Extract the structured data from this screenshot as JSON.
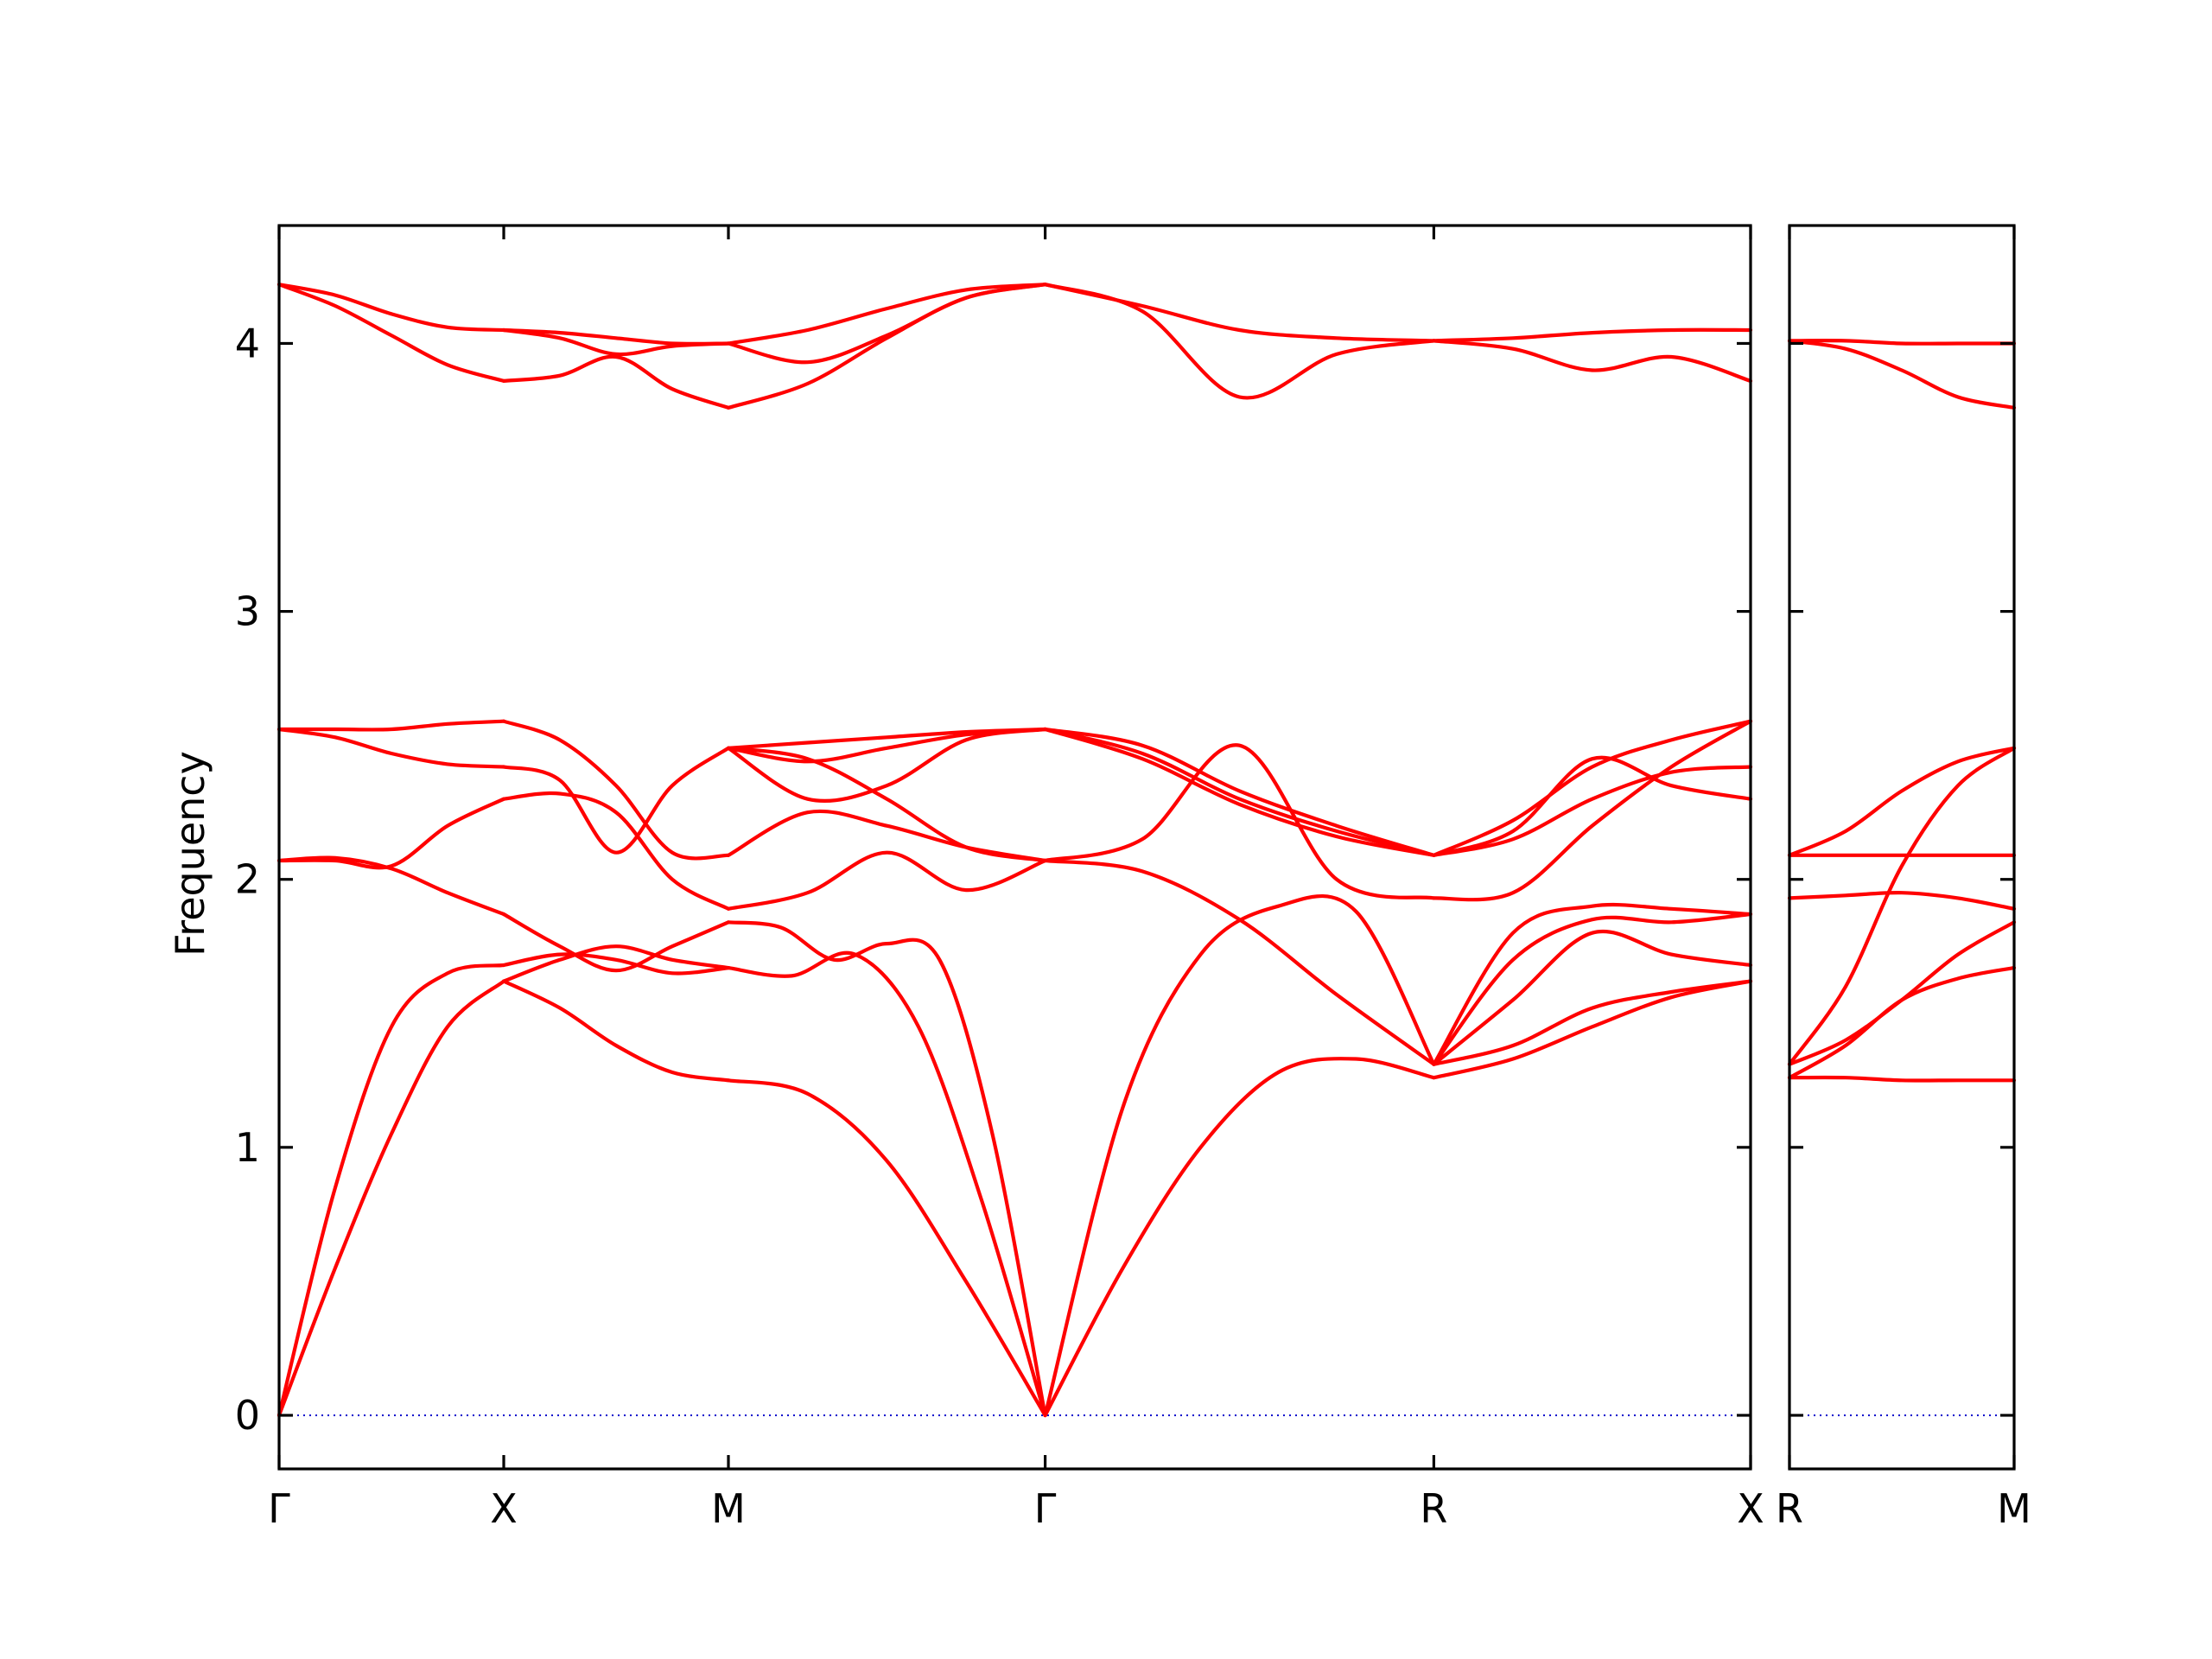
{
  "chart_data": {
    "type": "line",
    "title": "",
    "ylabel": "Frequency",
    "ylim": [
      -0.2,
      4.44
    ],
    "yticks": [
      0,
      1,
      2,
      3,
      4
    ],
    "colors": {
      "bands": "#ff0000",
      "zero_line": "#0000cc",
      "frame": "#000000"
    },
    "grid": false,
    "panels": [
      {
        "id": "main",
        "x_labels": [
          "Γ",
          "X",
          "M",
          "Γ",
          "R",
          "X"
        ],
        "segments": [
          {
            "from": "Γ",
            "to": "X",
            "length": 1.0,
            "bands": [
              [
                0.0,
                0.55,
                1.05,
                1.45,
                1.62
              ],
              [
                0.0,
                0.85,
                1.45,
                1.65,
                1.68
              ],
              [
                2.07,
                2.08,
                2.04,
                1.95,
                1.87
              ],
              [
                2.07,
                2.07,
                2.05,
                2.2,
                2.3
              ],
              [
                2.56,
                2.53,
                2.47,
                2.43,
                2.42
              ],
              [
                2.56,
                2.56,
                2.56,
                2.58,
                2.59
              ],
              [
                4.22,
                4.14,
                4.03,
                3.92,
                3.86
              ],
              [
                4.22,
                4.18,
                4.11,
                4.06,
                4.05
              ]
            ]
          },
          {
            "from": "X",
            "to": "M",
            "length": 1.0,
            "bands": [
              [
                1.62,
                1.52,
                1.38,
                1.28,
                1.25
              ],
              [
                1.62,
                1.7,
                1.75,
                1.7,
                1.67
              ],
              [
                1.68,
                1.72,
                1.7,
                1.65,
                1.67
              ],
              [
                1.87,
                1.75,
                1.66,
                1.75,
                1.84
              ],
              [
                2.3,
                2.32,
                2.25,
                2.0,
                1.89
              ],
              [
                2.42,
                2.37,
                2.1,
                2.35,
                2.49
              ],
              [
                2.59,
                2.52,
                2.35,
                2.1,
                2.09
              ],
              [
                3.86,
                3.88,
                3.95,
                3.83,
                3.76
              ],
              [
                4.05,
                4.02,
                3.96,
                3.99,
                4.0
              ],
              [
                4.05,
                4.04,
                4.02,
                4.0,
                4.0
              ]
            ]
          },
          {
            "from": "M",
            "to": "Γ",
            "length": 1.41,
            "bands": [
              [
                1.25,
                1.2,
                0.95,
                0.5,
                0.0
              ],
              [
                1.67,
                1.64,
                1.72,
                1.45,
                0.8,
                0.0
              ],
              [
                1.84,
                1.82,
                1.7,
                1.76,
                1.7,
                1.05,
                0.0
              ],
              [
                1.89,
                1.95,
                2.1,
                1.96,
                2.07
              ],
              [
                2.09,
                2.25,
                2.2,
                2.12,
                2.07
              ],
              [
                2.49,
                2.45,
                2.3,
                2.12,
                2.07
              ],
              [
                2.49,
                2.3,
                2.35,
                2.52,
                2.56
              ],
              [
                2.49,
                2.44,
                2.49,
                2.54,
                2.56
              ],
              [
                2.49,
                2.51,
                2.53,
                2.55,
                2.56
              ],
              [
                3.76,
                3.85,
                4.02,
                4.17,
                4.22
              ],
              [
                4.0,
                3.93,
                4.03,
                4.17,
                4.22
              ],
              [
                4.0,
                4.05,
                4.13,
                4.2,
                4.22
              ]
            ]
          },
          {
            "from": "Γ",
            "to": "R",
            "length": 1.73,
            "bands": [
              [
                0.0,
                0.55,
                1.0,
                1.28,
                1.33,
                1.26
              ],
              [
                0.0,
                1.15,
                1.72,
                1.9,
                1.88,
                1.31
              ],
              [
                2.07,
                2.03,
                1.85,
                1.57,
                1.31
              ],
              [
                2.07,
                2.15,
                2.5,
                2.0,
                1.93
              ],
              [
                2.56,
                2.5,
                2.33,
                2.2,
                2.09
              ],
              [
                2.56,
                2.47,
                2.3,
                2.18,
                2.09
              ],
              [
                2.56,
                2.45,
                2.28,
                2.16,
                2.09
              ],
              [
                4.22,
                4.12,
                3.8,
                3.96,
                4.01
              ],
              [
                4.22,
                4.14,
                4.05,
                4.02,
                4.01
              ]
            ]
          },
          {
            "from": "R",
            "to": "X",
            "length": 1.41,
            "bands": [
              [
                1.26,
                1.33,
                1.45,
                1.56,
                1.62
              ],
              [
                1.31,
                1.38,
                1.52,
                1.58,
                1.62
              ],
              [
                1.31,
                1.55,
                1.8,
                1.72,
                1.68
              ],
              [
                1.31,
                1.7,
                1.85,
                1.84,
                1.87
              ],
              [
                1.31,
                1.8,
                1.9,
                1.89,
                1.87
              ],
              [
                1.93,
                1.95,
                2.2,
                2.42,
                2.59
              ],
              [
                2.09,
                2.18,
                2.45,
                2.35,
                2.3
              ],
              [
                2.09,
                2.15,
                2.3,
                2.4,
                2.42
              ],
              [
                2.09,
                2.22,
                2.42,
                2.52,
                2.59
              ],
              [
                4.01,
                3.98,
                3.9,
                3.95,
                3.86
              ],
              [
                4.01,
                4.02,
                4.04,
                4.05,
                4.05
              ]
            ]
          }
        ]
      },
      {
        "id": "side",
        "x_labels": [
          "R",
          "M"
        ],
        "segments": [
          {
            "from": "R",
            "to": "M",
            "length": 1.0,
            "bands": [
              [
                1.26,
                1.26,
                1.25,
                1.25,
                1.25
              ],
              [
                1.26,
                1.38,
                1.55,
                1.63,
                1.67
              ],
              [
                1.31,
                1.4,
                1.55,
                1.72,
                1.84
              ],
              [
                1.31,
                1.6,
                2.05,
                2.35,
                2.49
              ],
              [
                1.93,
                1.94,
                1.95,
                1.93,
                1.89
              ],
              [
                2.09,
                2.09,
                2.09,
                2.09,
                2.09
              ],
              [
                2.09,
                2.18,
                2.33,
                2.44,
                2.49
              ],
              [
                4.01,
                3.98,
                3.9,
                3.8,
                3.76
              ],
              [
                4.01,
                4.01,
                4.0,
                4.0,
                4.0
              ]
            ]
          }
        ]
      }
    ]
  }
}
